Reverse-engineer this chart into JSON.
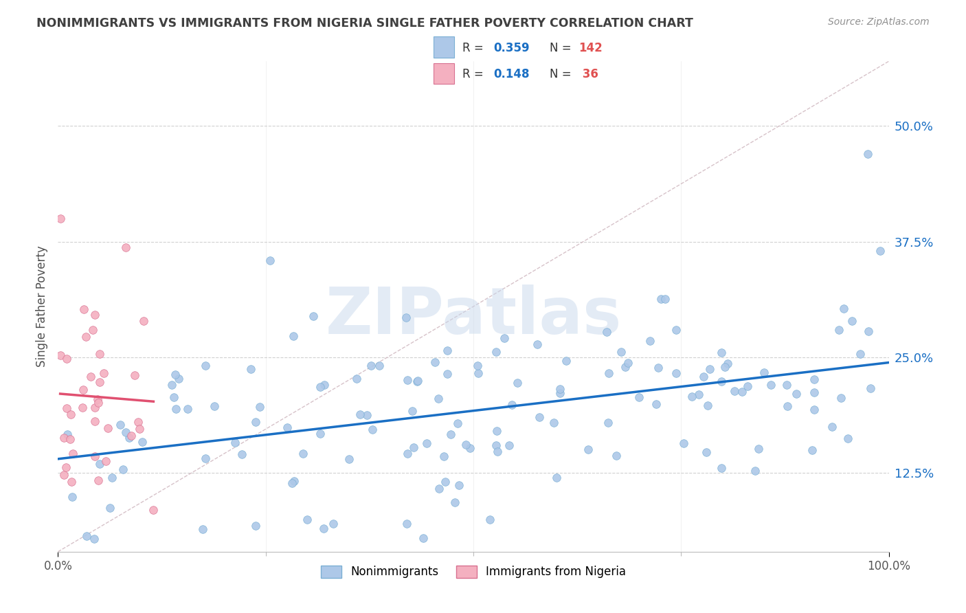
{
  "title": "NONIMMIGRANTS VS IMMIGRANTS FROM NIGERIA SINGLE FATHER POVERTY CORRELATION CHART",
  "source": "Source: ZipAtlas.com",
  "ylabel": "Single Father Poverty",
  "yticks": [
    0.125,
    0.25,
    0.375,
    0.5
  ],
  "ytick_labels": [
    "12.5%",
    "25.0%",
    "37.5%",
    "50.0%"
  ],
  "xtick_labels": [
    "0.0%",
    "100.0%"
  ],
  "xlim": [
    0.0,
    1.0
  ],
  "ylim": [
    0.04,
    0.57
  ],
  "nonimm_color": "#adc8e8",
  "nonimm_edge": "#7aafd4",
  "imm_color": "#f4b0c0",
  "imm_edge": "#d87090",
  "nonimm_line_color": "#1a6fc4",
  "imm_line_color": "#e05070",
  "diagonal_color": "#d0b8c0",
  "grid_color": "#d0d0d0",
  "background_color": "#ffffff",
  "watermark_text": "ZIPatlas",
  "watermark_color": "#c8d8ec",
  "legend_r1": "0.359",
  "legend_n1": "142",
  "legend_r2": "0.148",
  "legend_n2": " 36",
  "title_color": "#404040",
  "source_color": "#909090",
  "ytick_color": "#1a6fc4",
  "label_color": "#505050"
}
